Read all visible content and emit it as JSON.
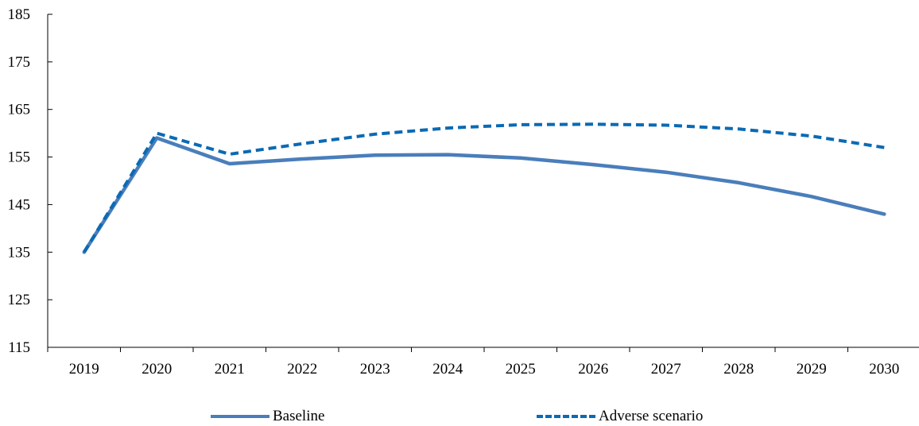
{
  "chart_data": {
    "type": "line",
    "title": "",
    "xlabel": "",
    "ylabel": "",
    "categories": [
      "2019",
      "2020",
      "2021",
      "2022",
      "2023",
      "2024",
      "2025",
      "2026",
      "2027",
      "2028",
      "2029",
      "2030"
    ],
    "ylim": [
      115,
      185
    ],
    "yticks": [
      "115",
      "125",
      "135",
      "145",
      "155",
      "165",
      "175",
      "185"
    ],
    "grid": false,
    "legend_position": "bottom",
    "series": [
      {
        "name": "Baseline",
        "style": "solid",
        "color": "#4a7ebb",
        "values": [
          135.0,
          159.0,
          153.6,
          154.6,
          155.4,
          155.5,
          154.8,
          153.4,
          151.8,
          149.6,
          146.7,
          143.0
        ]
      },
      {
        "name": "Adverse scenario",
        "style": "dashed",
        "color": "#0a6ab4",
        "values": [
          135.0,
          160.0,
          155.6,
          157.8,
          159.8,
          161.1,
          161.8,
          161.9,
          161.7,
          160.9,
          159.4,
          157.0
        ]
      }
    ]
  }
}
